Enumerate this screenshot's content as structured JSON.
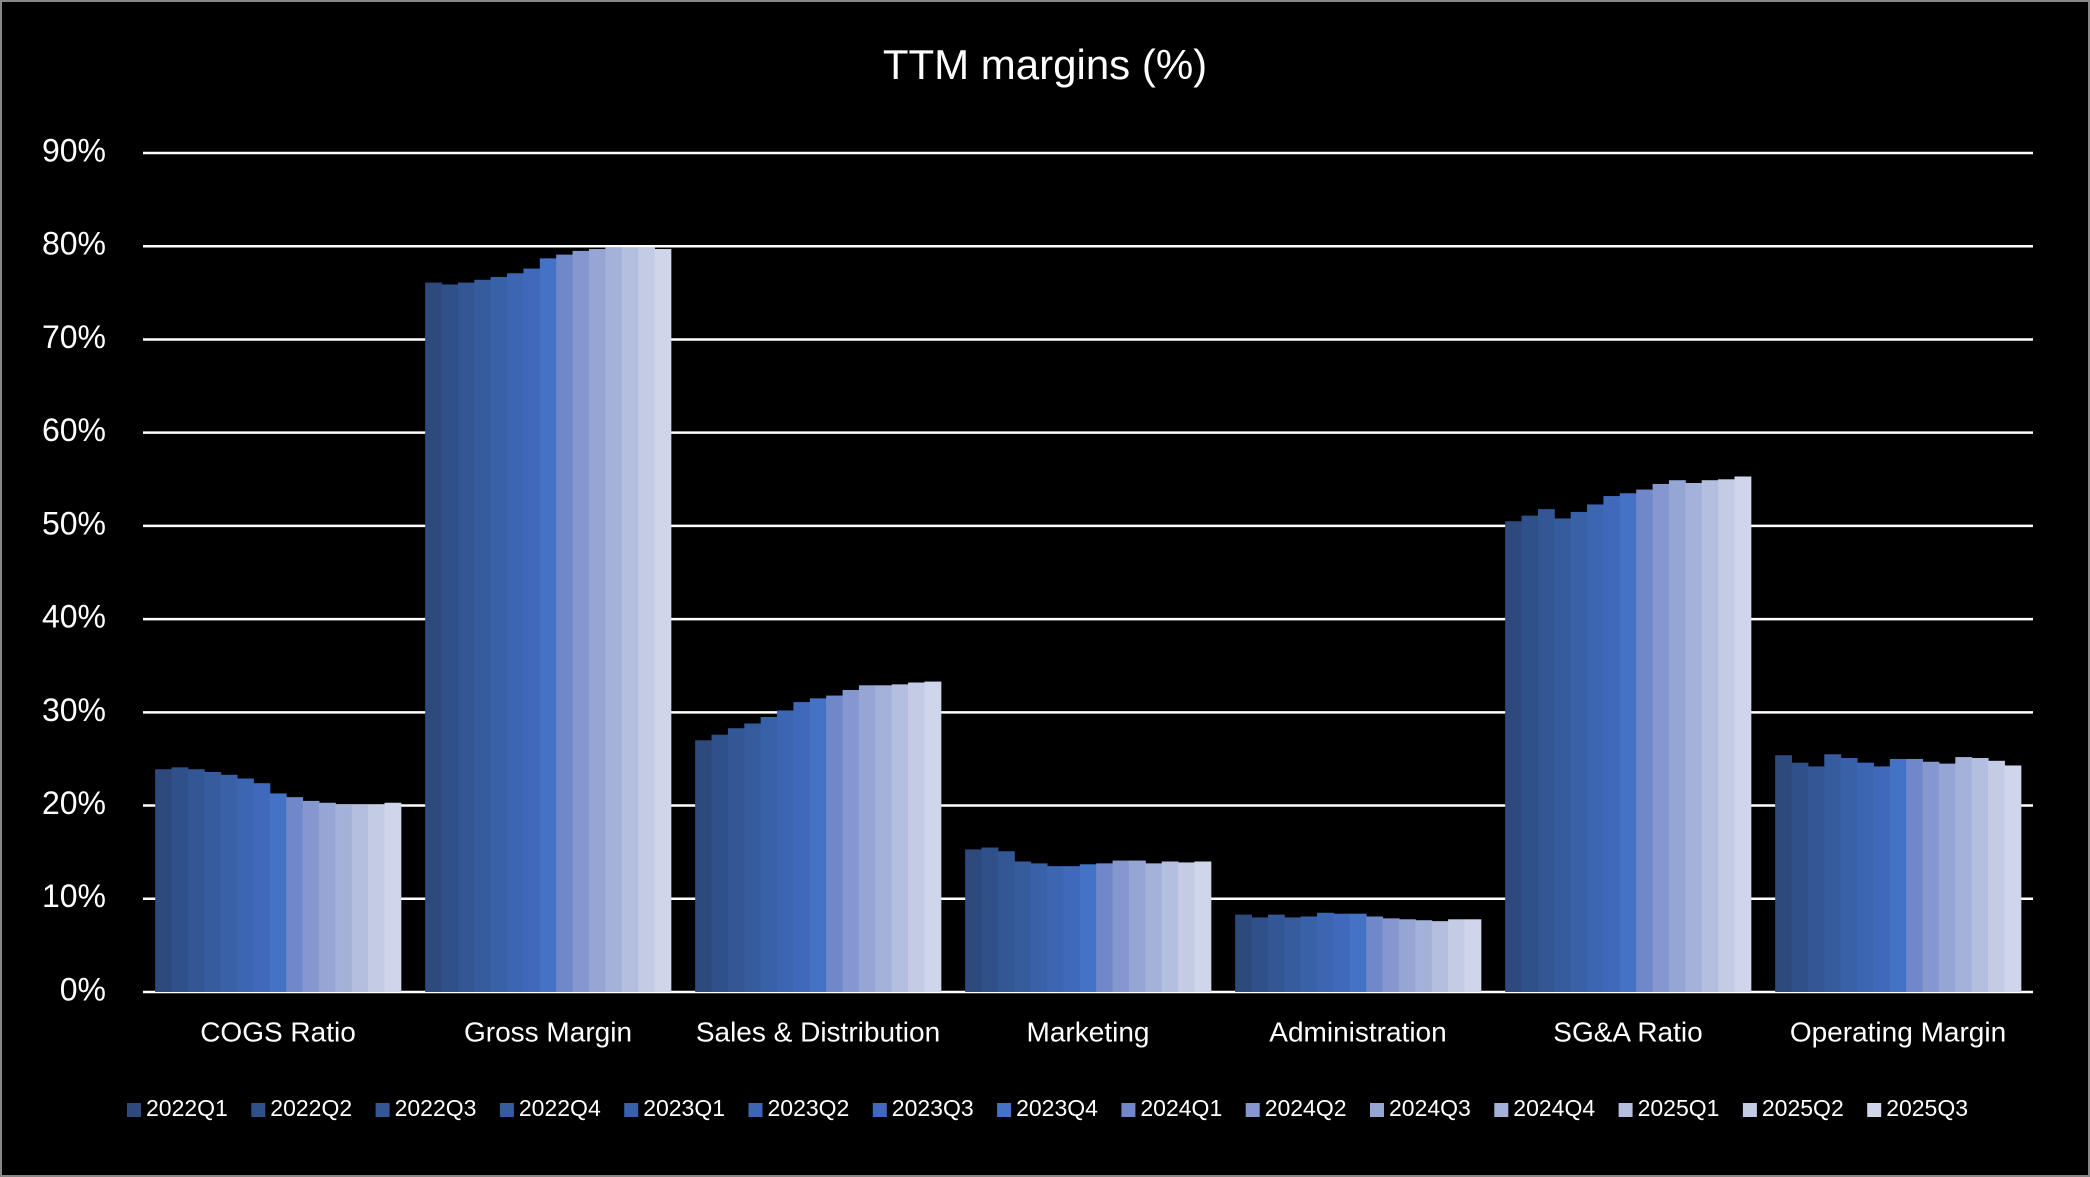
{
  "chart_data": {
    "type": "bar",
    "title": "TTM margins (%)",
    "categories": [
      "COGS Ratio",
      "Gross Margin",
      "Sales & Distribution",
      "Marketing",
      "Administration",
      "SG&A Ratio",
      "Operating Margin"
    ],
    "ylim": [
      0,
      90
    ],
    "yticks": [
      {
        "value": 0,
        "label": "0%"
      },
      {
        "value": 10,
        "label": "10%"
      },
      {
        "value": 20,
        "label": "20%"
      },
      {
        "value": 30,
        "label": "30%"
      },
      {
        "value": 40,
        "label": "40%"
      },
      {
        "value": 50,
        "label": "50%"
      },
      {
        "value": 60,
        "label": "60%"
      },
      {
        "value": 70,
        "label": "70%"
      },
      {
        "value": 80,
        "label": "80%"
      },
      {
        "value": 90,
        "label": "90%"
      }
    ],
    "grid": true,
    "legend": "bottom",
    "series": [
      {
        "name": "2022Q1",
        "color": "#2e4a7d",
        "values": [
          23.9,
          76.1,
          27.0,
          15.3,
          8.3,
          50.5,
          25.4
        ]
      },
      {
        "name": "2022Q2",
        "color": "#30508a",
        "values": [
          24.1,
          75.9,
          27.6,
          15.5,
          8.0,
          51.1,
          24.6
        ]
      },
      {
        "name": "2022Q3",
        "color": "#335694",
        "values": [
          23.9,
          76.1,
          28.3,
          15.1,
          8.3,
          51.8,
          24.2
        ]
      },
      {
        "name": "2022Q4",
        "color": "#365c9e",
        "values": [
          23.6,
          76.4,
          28.8,
          14.0,
          8.0,
          50.8,
          25.5
        ]
      },
      {
        "name": "2023Q1",
        "color": "#3961a8",
        "values": [
          23.3,
          76.7,
          29.5,
          13.8,
          8.1,
          51.5,
          25.1
        ]
      },
      {
        "name": "2023Q2",
        "color": "#3c66b2",
        "values": [
          22.9,
          77.1,
          30.2,
          13.5,
          8.5,
          52.3,
          24.6
        ]
      },
      {
        "name": "2023Q3",
        "color": "#4069bc",
        "values": [
          22.4,
          77.6,
          31.1,
          13.5,
          8.4,
          53.2,
          24.2
        ]
      },
      {
        "name": "2023Q4",
        "color": "#4472c4",
        "values": [
          21.3,
          78.7,
          31.5,
          13.7,
          8.4,
          53.5,
          25.0
        ]
      },
      {
        "name": "2024Q1",
        "color": "#7088c9",
        "values": [
          20.9,
          79.1,
          31.8,
          13.8,
          8.1,
          53.9,
          25.0
        ]
      },
      {
        "name": "2024Q2",
        "color": "#8597cf",
        "values": [
          20.5,
          79.5,
          32.4,
          14.1,
          7.9,
          54.5,
          24.7
        ]
      },
      {
        "name": "2024Q3",
        "color": "#95a5d4",
        "values": [
          20.3,
          79.7,
          32.9,
          14.1,
          7.8,
          54.9,
          24.5
        ]
      },
      {
        "name": "2024Q4",
        "color": "#a4b1d9",
        "values": [
          20.1,
          79.9,
          32.9,
          13.8,
          7.7,
          54.6,
          25.2
        ]
      },
      {
        "name": "2025Q1",
        "color": "#b4bfdf",
        "values": [
          20.1,
          79.9,
          33.0,
          14.0,
          7.6,
          54.9,
          25.1
        ]
      },
      {
        "name": "2025Q2",
        "color": "#c3cbe5",
        "values": [
          20.1,
          79.9,
          33.2,
          13.9,
          7.8,
          55.0,
          24.8
        ]
      },
      {
        "name": "2025Q3",
        "color": "#cfd5ea",
        "values": [
          20.3,
          79.7,
          33.3,
          14.0,
          7.8,
          55.3,
          24.3
        ]
      }
    ]
  }
}
